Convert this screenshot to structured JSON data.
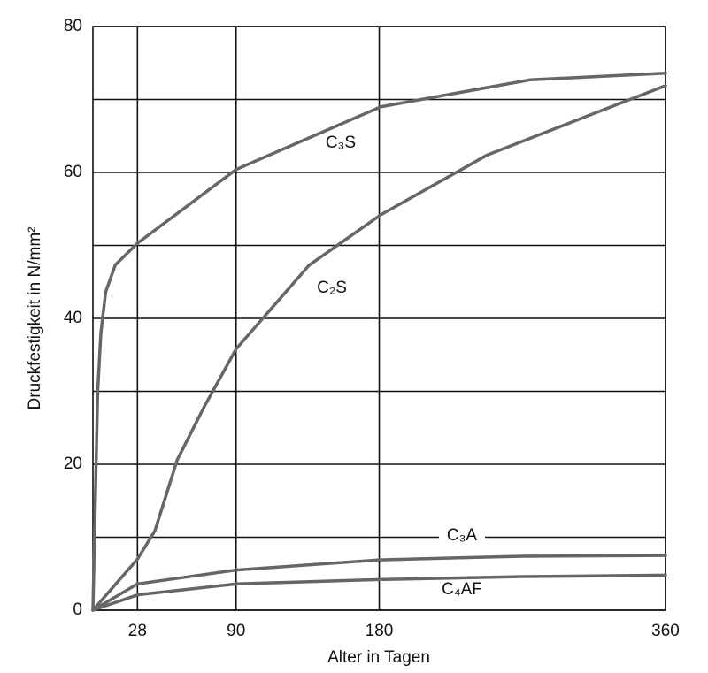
{
  "chart_data": {
    "type": "line",
    "x_label": "Alter in Tagen",
    "y_label": "Druckfestigkeit in N/mm²",
    "xlim": [
      0,
      360
    ],
    "xticks": [
      28,
      90,
      180,
      360
    ],
    "ylim": [
      0,
      80
    ],
    "yticks": [
      0,
      20,
      40,
      60,
      80
    ],
    "minor_yticks": [
      10,
      30,
      50,
      70
    ],
    "grid": true,
    "series": [
      {
        "name": "C₃S",
        "color": "#666666",
        "x": [
          0,
          1,
          3,
          5,
          8,
          14,
          28,
          90,
          181,
          275,
          360
        ],
        "values": [
          0,
          10,
          30,
          38,
          43.6,
          47.3,
          50.3,
          60.4,
          69,
          72.7,
          73.6
        ]
      },
      {
        "name": "C₂S",
        "color": "#666666",
        "x": [
          0,
          28,
          39,
          53,
          70,
          90,
          136,
          181,
          248,
          360
        ],
        "values": [
          0,
          7,
          10.9,
          20.6,
          27.9,
          35.8,
          47.3,
          54.2,
          62.4,
          71.9
        ]
      },
      {
        "name": "C₃A",
        "color": "#666666",
        "x": [
          0,
          28,
          90,
          180,
          270,
          360
        ],
        "values": [
          0,
          3.6,
          5.5,
          6.9,
          7.4,
          7.5
        ]
      },
      {
        "name": "C₄AF",
        "color": "#666666",
        "x": [
          0,
          28,
          90,
          180,
          270,
          360
        ],
        "values": [
          0,
          2.1,
          3.6,
          4.2,
          4.6,
          4.8
        ]
      }
    ]
  }
}
